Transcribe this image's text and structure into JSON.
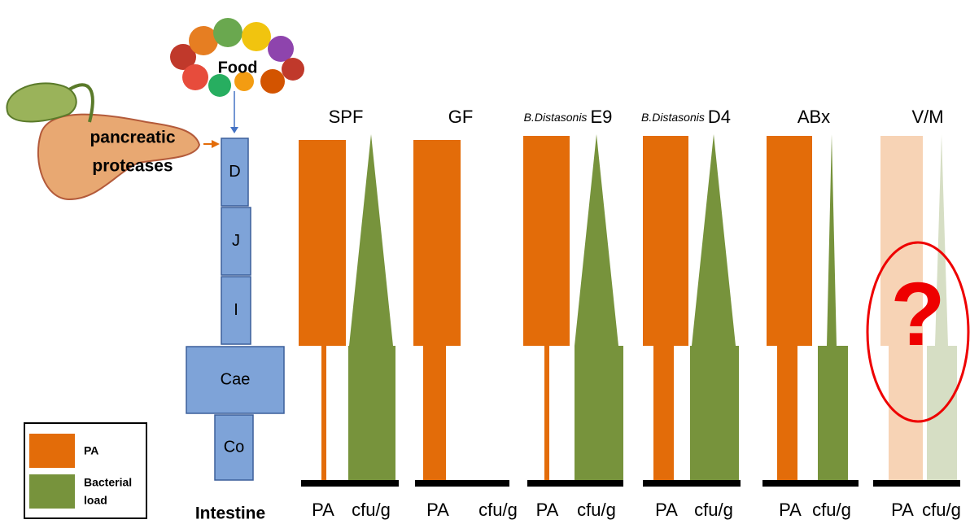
{
  "food": "Food",
  "enzymes": [
    "pancreatic",
    "proteases"
  ],
  "intestine": {
    "label": "Intestine",
    "segments": [
      "D",
      "J",
      "I",
      "Cae",
      "Co"
    ]
  },
  "groups": [
    {
      "label": "SPF"
    },
    {
      "label": "GF"
    },
    {
      "prefix": "B.Distasonis",
      "label": "E9"
    },
    {
      "prefix": "B.Distasonis",
      "label": "D4"
    },
    {
      "label": "ABx"
    },
    {
      "label": "V/M",
      "mark": "?"
    }
  ],
  "x_labels": [
    "PA",
    "cfu/g"
  ],
  "legend": [
    "PA",
    [
      "Bacterial",
      "load"
    ]
  ]
}
